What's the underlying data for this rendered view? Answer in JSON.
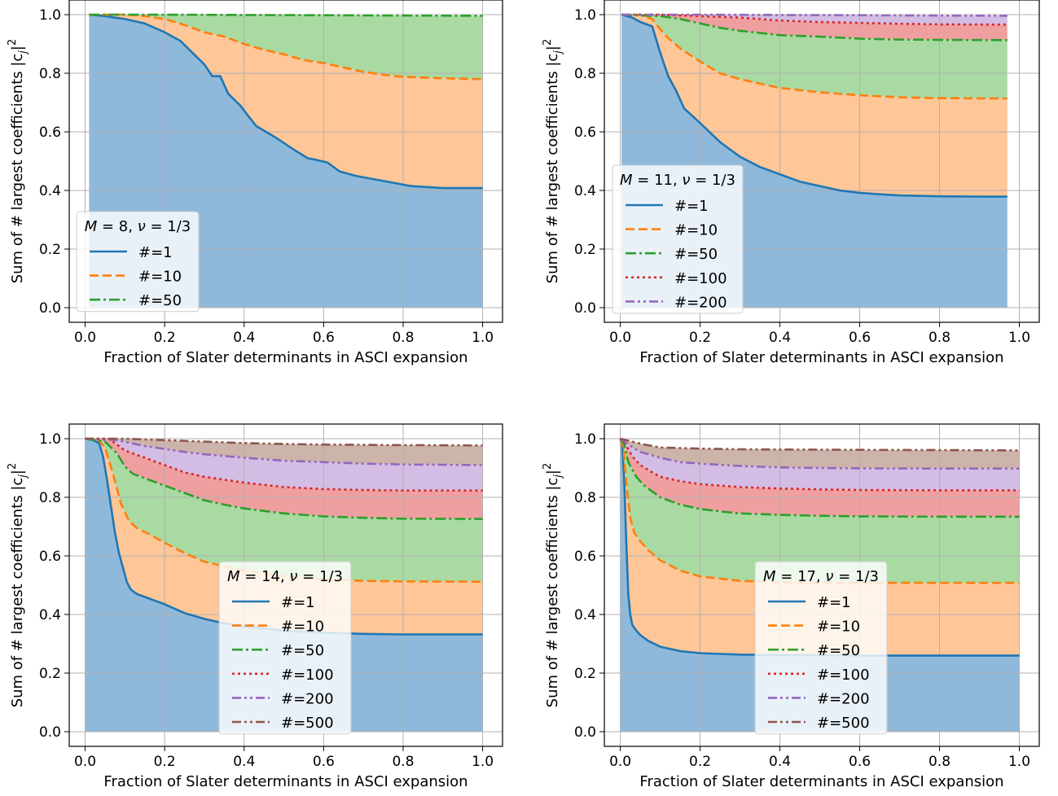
{
  "figure": {
    "xlabel": "Fraction of Slater determinants in ASCI expansion",
    "ylabel_main": "Sum of # largest coefficients |c",
    "ylabel_sub": "j",
    "ylabel_end": "|",
    "ylabel_sup": "2",
    "series_colors": {
      "#=1": "#1f77b4",
      "#=10": "#ff7f0e",
      "#=50": "#2ca02c",
      "#=100": "#d62728",
      "#=200": "#9467bd",
      "#=500": "#8c564b"
    },
    "fill_colors": [
      "#8fb9db",
      "#ffc698",
      "#a9daa2",
      "#ef9f9f",
      "#d3bde4",
      "#ccb4ab"
    ]
  },
  "chart_data": [
    {
      "type": "area",
      "panel": "top-left",
      "legend_title": "M = 8, ν = 1/3",
      "legend_title_parts": {
        "M": "M",
        "eq1": " = 8, ",
        "nu": "ν",
        "eq2": " = 1/3"
      },
      "legend_position": "lower-left",
      "grid": true,
      "xlim": [
        -0.04,
        1.05
      ],
      "ylim": [
        -0.05,
        1.05
      ],
      "xticks": [
        "0.0",
        "0.2",
        "0.4",
        "0.6",
        "0.8",
        "1.0"
      ],
      "yticks": [
        "0.0",
        "0.2",
        "0.4",
        "0.6",
        "0.8",
        "1.0"
      ],
      "series": [
        {
          "name": "#=1",
          "style": "solid",
          "x": [
            0.01,
            0.05,
            0.1,
            0.15,
            0.2,
            0.24,
            0.27,
            0.3,
            0.32,
            0.34,
            0.36,
            0.39,
            0.43,
            0.48,
            0.53,
            0.56,
            0.58,
            0.61,
            0.64,
            0.68,
            0.72,
            0.78,
            0.82,
            0.9,
            1.0
          ],
          "y": [
            1.0,
            0.995,
            0.985,
            0.97,
            0.94,
            0.91,
            0.87,
            0.83,
            0.79,
            0.79,
            0.73,
            0.69,
            0.62,
            0.58,
            0.535,
            0.51,
            0.505,
            0.495,
            0.465,
            0.45,
            0.44,
            0.425,
            0.415,
            0.408,
            0.408
          ]
        },
        {
          "name": "#=10",
          "style": "dashed",
          "x": [
            0.01,
            0.1,
            0.15,
            0.2,
            0.25,
            0.3,
            0.35,
            0.4,
            0.45,
            0.5,
            0.55,
            0.6,
            0.65,
            0.7,
            0.75,
            0.8,
            0.9,
            1.0
          ],
          "y": [
            1.0,
            1.0,
            0.995,
            0.985,
            0.965,
            0.94,
            0.925,
            0.9,
            0.88,
            0.865,
            0.845,
            0.835,
            0.82,
            0.805,
            0.795,
            0.788,
            0.783,
            0.78
          ]
        },
        {
          "name": "#=50",
          "style": "dashdot",
          "x": [
            0.01,
            0.2,
            0.4,
            0.6,
            0.8,
            1.0
          ],
          "y": [
            1.0,
            1.0,
            0.999,
            0.998,
            0.997,
            0.996
          ]
        }
      ]
    },
    {
      "type": "area",
      "panel": "top-right",
      "legend_title": "M = 11, ν = 1/3",
      "legend_title_parts": {
        "M": "M",
        "eq1": " = 11, ",
        "nu": "ν",
        "eq2": " = 1/3"
      },
      "legend_position": "lower-left",
      "grid": true,
      "xlim": [
        -0.04,
        1.05
      ],
      "ylim": [
        -0.05,
        1.05
      ],
      "xticks": [
        "0.0",
        "0.2",
        "0.4",
        "0.6",
        "0.8",
        "1.0"
      ],
      "yticks": [
        "0.0",
        "0.2",
        "0.4",
        "0.6",
        "0.8",
        "1.0"
      ],
      "series": [
        {
          "name": "#=1",
          "style": "solid",
          "x": [
            0.003,
            0.03,
            0.05,
            0.08,
            0.1,
            0.12,
            0.14,
            0.16,
            0.2,
            0.25,
            0.3,
            0.35,
            0.4,
            0.45,
            0.5,
            0.55,
            0.6,
            0.65,
            0.7,
            0.8,
            0.9,
            0.97
          ],
          "y": [
            1.0,
            0.99,
            0.975,
            0.96,
            0.87,
            0.79,
            0.74,
            0.68,
            0.63,
            0.565,
            0.515,
            0.48,
            0.455,
            0.43,
            0.415,
            0.4,
            0.392,
            0.387,
            0.383,
            0.38,
            0.379,
            0.379
          ]
        },
        {
          "name": "#=10",
          "style": "dashed",
          "x": [
            0.003,
            0.05,
            0.08,
            0.1,
            0.12,
            0.15,
            0.2,
            0.25,
            0.3,
            0.35,
            0.4,
            0.5,
            0.6,
            0.7,
            0.8,
            0.97
          ],
          "y": [
            1.0,
            1.0,
            0.985,
            0.95,
            0.92,
            0.885,
            0.84,
            0.8,
            0.78,
            0.765,
            0.75,
            0.735,
            0.725,
            0.718,
            0.715,
            0.714
          ]
        },
        {
          "name": "#=50",
          "style": "dashdot",
          "x": [
            0.003,
            0.1,
            0.15,
            0.2,
            0.25,
            0.3,
            0.4,
            0.5,
            0.6,
            0.7,
            0.8,
            0.97
          ],
          "y": [
            1.0,
            0.995,
            0.985,
            0.97,
            0.955,
            0.945,
            0.93,
            0.925,
            0.918,
            0.915,
            0.914,
            0.913
          ]
        },
        {
          "name": "#=100",
          "style": "dotted",
          "x": [
            0.003,
            0.1,
            0.2,
            0.3,
            0.4,
            0.5,
            0.6,
            0.7,
            0.8,
            0.97
          ],
          "y": [
            1.0,
            1.0,
            0.995,
            0.99,
            0.98,
            0.975,
            0.972,
            0.969,
            0.967,
            0.966
          ]
        },
        {
          "name": "#=200",
          "style": "dashdotdot",
          "x": [
            0.003,
            0.2,
            0.4,
            0.6,
            0.8,
            0.97
          ],
          "y": [
            1.0,
            1.0,
            0.999,
            0.998,
            0.997,
            0.996
          ]
        }
      ]
    },
    {
      "type": "area",
      "panel": "bottom-left",
      "legend_title": "M = 14, ν = 1/3",
      "legend_title_parts": {
        "M": "M",
        "eq1": " = 14, ",
        "nu": "ν",
        "eq2": " = 1/3"
      },
      "legend_position": "lower-center",
      "grid": true,
      "xlim": [
        -0.04,
        1.05
      ],
      "ylim": [
        -0.05,
        1.05
      ],
      "xticks": [
        "0.0",
        "0.2",
        "0.4",
        "0.6",
        "0.8",
        "1.0"
      ],
      "yticks": [
        "0.0",
        "0.2",
        "0.4",
        "0.6",
        "0.8",
        "1.0"
      ],
      "series": [
        {
          "name": "#=1",
          "style": "solid",
          "x": [
            0.0,
            0.02,
            0.035,
            0.045,
            0.055,
            0.065,
            0.075,
            0.085,
            0.095,
            0.105,
            0.115,
            0.13,
            0.15,
            0.18,
            0.2,
            0.25,
            0.3,
            0.35,
            0.4,
            0.5,
            0.6,
            0.7,
            0.8,
            1.0
          ],
          "y": [
            1.0,
            0.995,
            0.985,
            0.94,
            0.86,
            0.77,
            0.68,
            0.61,
            0.56,
            0.51,
            0.485,
            0.47,
            0.46,
            0.445,
            0.435,
            0.405,
            0.385,
            0.37,
            0.36,
            0.345,
            0.338,
            0.334,
            0.332,
            0.332
          ]
        },
        {
          "name": "#=10",
          "style": "dashed",
          "x": [
            0.0,
            0.03,
            0.05,
            0.07,
            0.09,
            0.11,
            0.13,
            0.16,
            0.2,
            0.25,
            0.3,
            0.35,
            0.4,
            0.5,
            0.6,
            0.7,
            0.8,
            1.0
          ],
          "y": [
            1.0,
            1.0,
            0.97,
            0.88,
            0.78,
            0.72,
            0.695,
            0.675,
            0.645,
            0.61,
            0.58,
            0.565,
            0.55,
            0.53,
            0.52,
            0.515,
            0.513,
            0.512
          ]
        },
        {
          "name": "#=50",
          "style": "dashdot",
          "x": [
            0.0,
            0.05,
            0.08,
            0.1,
            0.12,
            0.15,
            0.2,
            0.25,
            0.3,
            0.35,
            0.4,
            0.5,
            0.6,
            0.7,
            0.8,
            1.0
          ],
          "y": [
            1.0,
            0.99,
            0.95,
            0.905,
            0.88,
            0.865,
            0.84,
            0.815,
            0.79,
            0.775,
            0.762,
            0.745,
            0.735,
            0.73,
            0.727,
            0.726
          ]
        },
        {
          "name": "#=100",
          "style": "dotted",
          "x": [
            0.0,
            0.06,
            0.1,
            0.15,
            0.2,
            0.25,
            0.3,
            0.4,
            0.5,
            0.6,
            0.7,
            0.8,
            1.0
          ],
          "y": [
            1.0,
            1.0,
            0.96,
            0.935,
            0.91,
            0.885,
            0.87,
            0.85,
            0.835,
            0.828,
            0.825,
            0.823,
            0.823
          ]
        },
        {
          "name": "#=200",
          "style": "dashdotdot",
          "x": [
            0.0,
            0.08,
            0.15,
            0.2,
            0.25,
            0.3,
            0.4,
            0.5,
            0.6,
            0.7,
            0.8,
            1.0
          ],
          "y": [
            1.0,
            0.995,
            0.975,
            0.965,
            0.955,
            0.947,
            0.935,
            0.925,
            0.92,
            0.915,
            0.912,
            0.91
          ]
        },
        {
          "name": "#=500",
          "style": "dashdotdot",
          "x": [
            0.0,
            0.1,
            0.2,
            0.3,
            0.4,
            0.5,
            0.6,
            0.8,
            1.0
          ],
          "y": [
            1.0,
            1.0,
            0.995,
            0.99,
            0.985,
            0.982,
            0.98,
            0.978,
            0.977
          ]
        }
      ]
    },
    {
      "type": "area",
      "panel": "bottom-right",
      "legend_title": "M = 17, ν = 1/3",
      "legend_title_parts": {
        "M": "M",
        "eq1": " = 17, ",
        "nu": "ν",
        "eq2": " = 1/3"
      },
      "legend_position": "lower-center",
      "grid": true,
      "xlim": [
        -0.04,
        1.05
      ],
      "ylim": [
        -0.05,
        1.05
      ],
      "xticks": [
        "0.0",
        "0.2",
        "0.4",
        "0.6",
        "0.8",
        "1.0"
      ],
      "yticks": [
        "0.0",
        "0.2",
        "0.4",
        "0.6",
        "0.8",
        "1.0"
      ],
      "series": [
        {
          "name": "#=1",
          "style": "solid",
          "x": [
            0.0,
            0.005,
            0.01,
            0.015,
            0.02,
            0.025,
            0.03,
            0.04,
            0.05,
            0.07,
            0.1,
            0.15,
            0.2,
            0.3,
            0.4,
            0.5,
            0.6,
            0.8,
            1.0
          ],
          "y": [
            1.0,
            0.98,
            0.85,
            0.65,
            0.47,
            0.4,
            0.365,
            0.345,
            0.33,
            0.31,
            0.29,
            0.275,
            0.268,
            0.263,
            0.262,
            0.261,
            0.26,
            0.26,
            0.26
          ]
        },
        {
          "name": "#=10",
          "style": "dashed",
          "x": [
            0.0,
            0.008,
            0.015,
            0.025,
            0.035,
            0.05,
            0.07,
            0.1,
            0.15,
            0.2,
            0.3,
            0.4,
            0.5,
            0.6,
            0.8,
            1.0
          ],
          "y": [
            1.0,
            0.97,
            0.85,
            0.73,
            0.68,
            0.65,
            0.62,
            0.585,
            0.55,
            0.53,
            0.515,
            0.51,
            0.509,
            0.508,
            0.508,
            0.508
          ]
        },
        {
          "name": "#=50",
          "style": "dashdot",
          "x": [
            0.0,
            0.01,
            0.02,
            0.04,
            0.06,
            0.08,
            0.1,
            0.15,
            0.2,
            0.25,
            0.3,
            0.4,
            0.5,
            0.6,
            0.8,
            1.0
          ],
          "y": [
            1.0,
            0.98,
            0.92,
            0.87,
            0.84,
            0.82,
            0.8,
            0.775,
            0.76,
            0.752,
            0.745,
            0.74,
            0.737,
            0.735,
            0.734,
            0.734
          ]
        },
        {
          "name": "#=100",
          "style": "dotted",
          "x": [
            0.0,
            0.01,
            0.03,
            0.05,
            0.08,
            0.1,
            0.15,
            0.2,
            0.3,
            0.4,
            0.5,
            0.6,
            0.8,
            1.0
          ],
          "y": [
            1.0,
            0.99,
            0.94,
            0.91,
            0.885,
            0.87,
            0.855,
            0.845,
            0.835,
            0.83,
            0.827,
            0.825,
            0.824,
            0.824
          ]
        },
        {
          "name": "#=200",
          "style": "dashdotdot",
          "x": [
            0.0,
            0.02,
            0.05,
            0.1,
            0.15,
            0.2,
            0.3,
            0.4,
            0.5,
            0.6,
            0.8,
            1.0
          ],
          "y": [
            1.0,
            0.98,
            0.955,
            0.935,
            0.92,
            0.915,
            0.907,
            0.902,
            0.9,
            0.899,
            0.898,
            0.898
          ]
        },
        {
          "name": "#=500",
          "style": "dashdotdot",
          "x": [
            0.0,
            0.03,
            0.06,
            0.1,
            0.15,
            0.2,
            0.3,
            0.4,
            0.6,
            0.8,
            1.0
          ],
          "y": [
            1.0,
            0.99,
            0.98,
            0.97,
            0.968,
            0.966,
            0.964,
            0.963,
            0.962,
            0.961,
            0.96
          ]
        }
      ]
    }
  ]
}
